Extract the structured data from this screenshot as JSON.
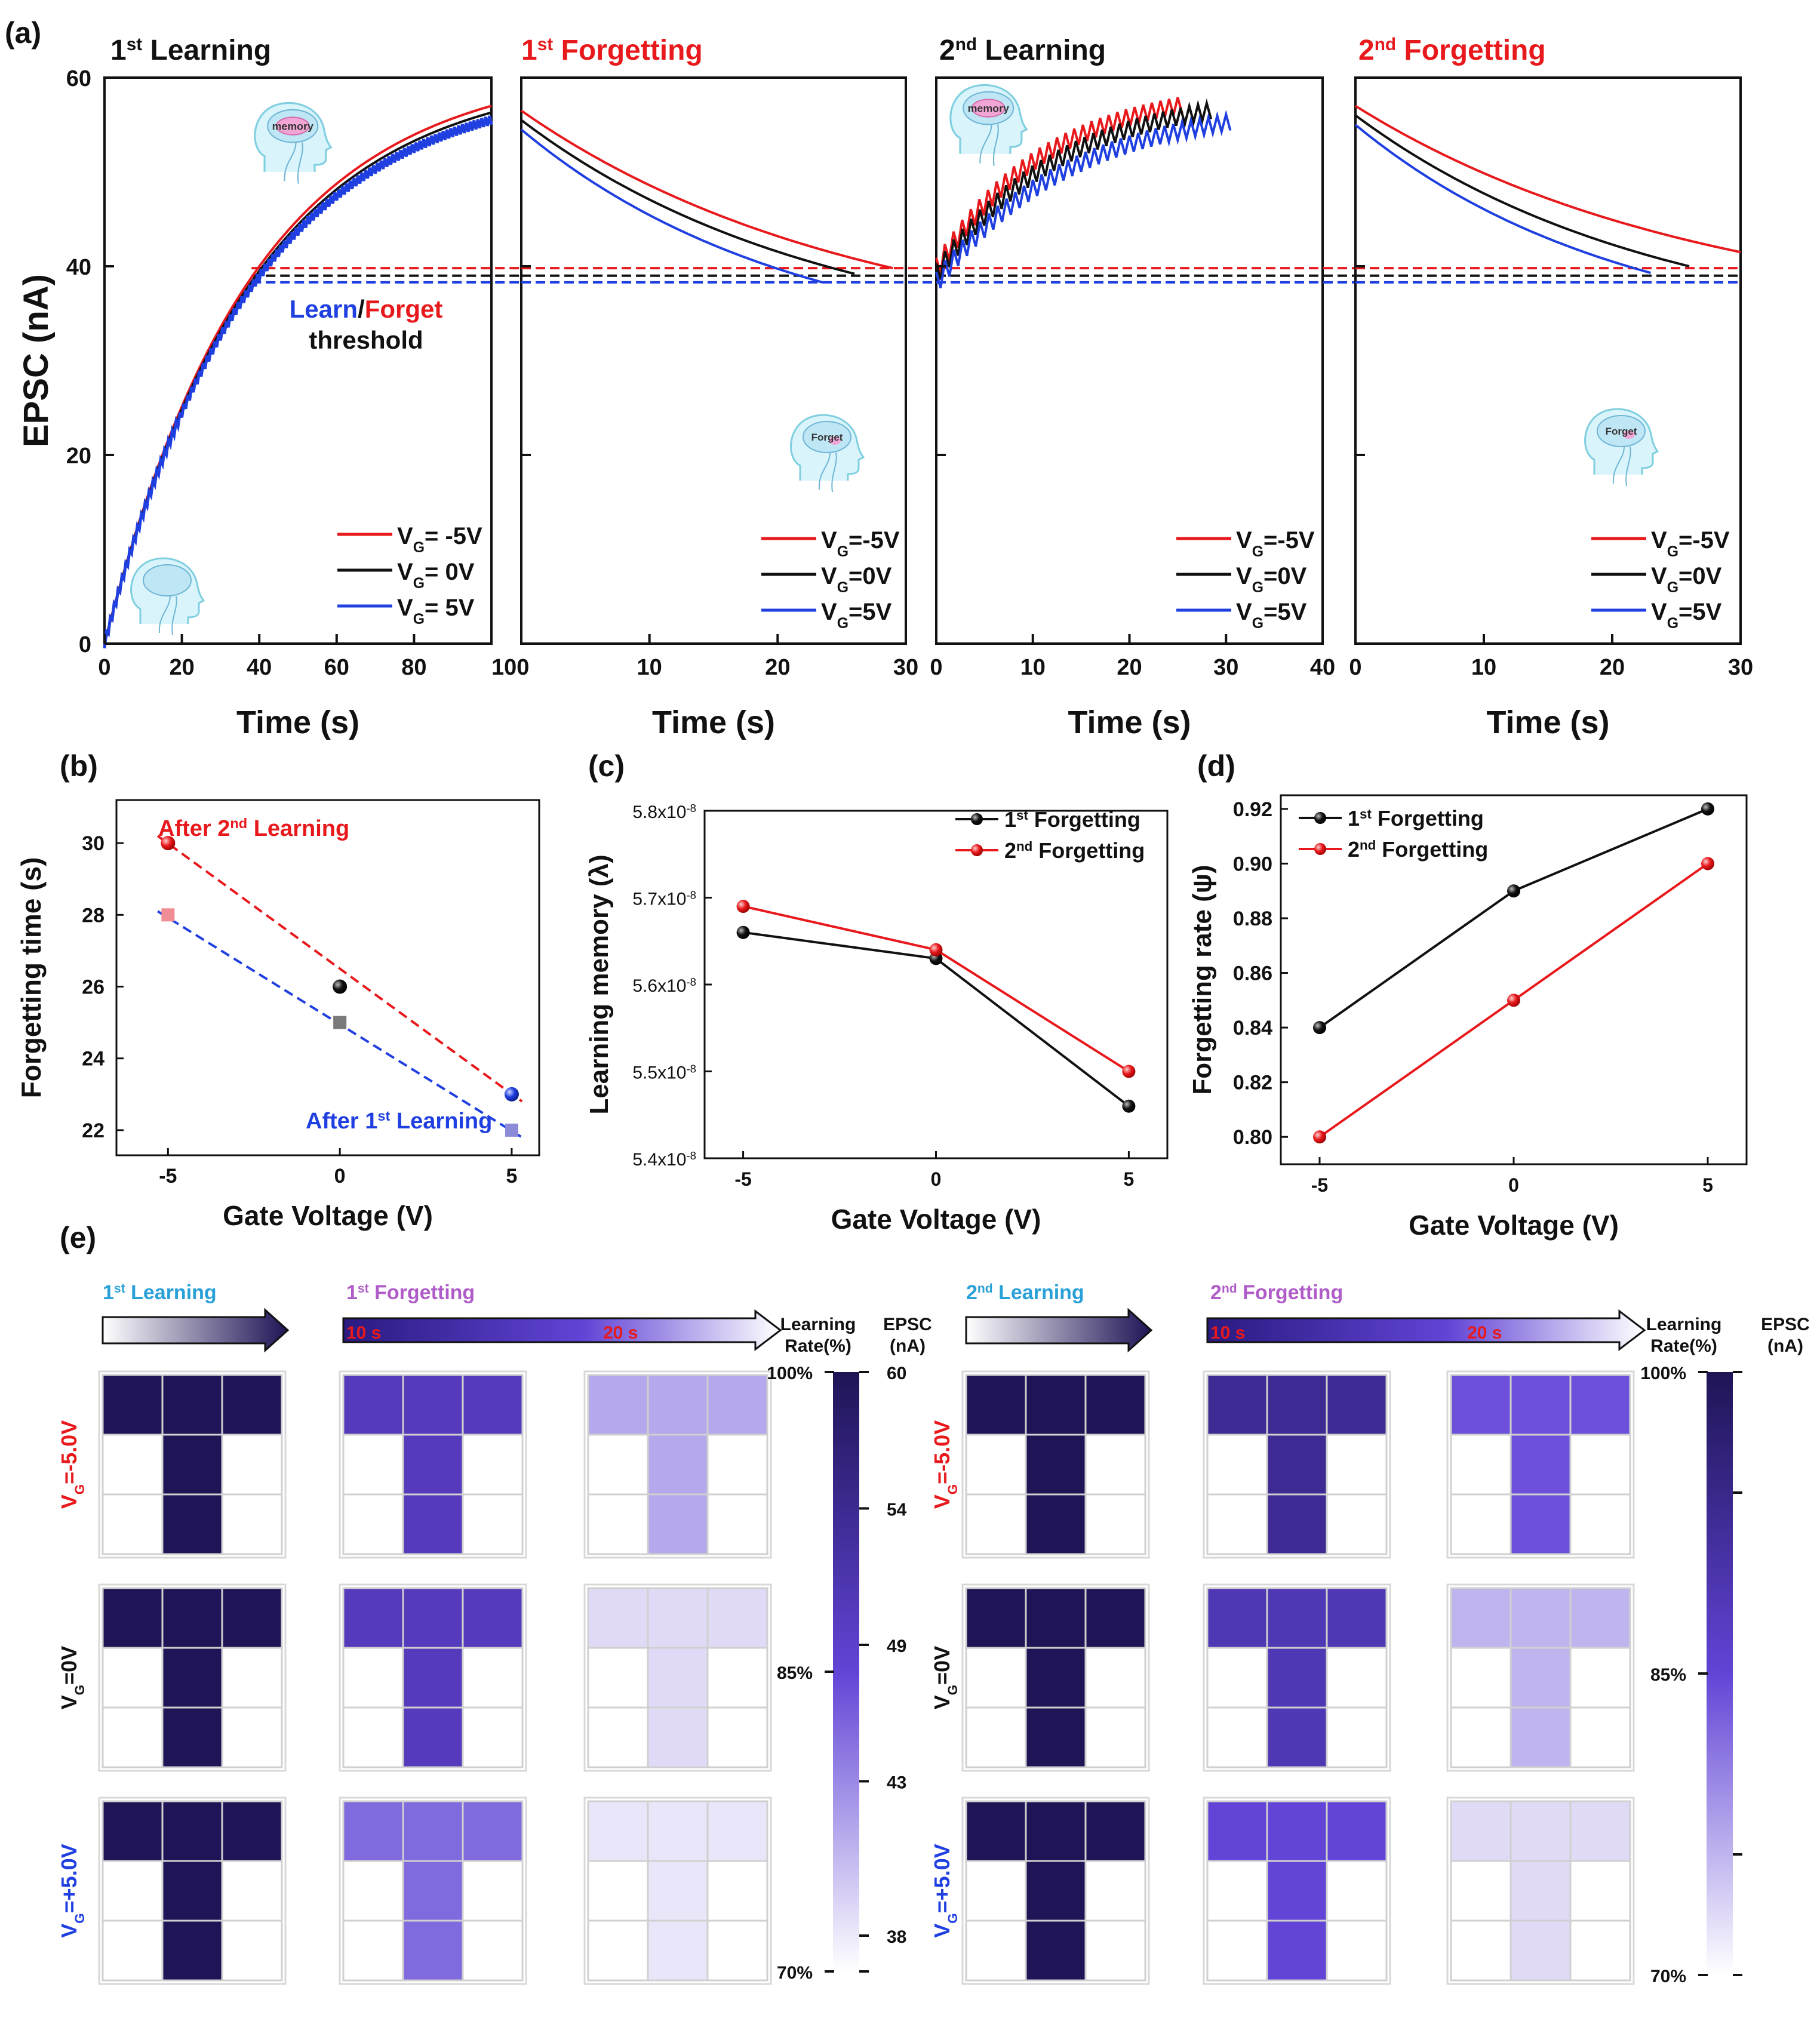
{
  "figure_labels": {
    "a": "(a)",
    "b": "(b)",
    "c": "(c)",
    "d": "(d)",
    "e": "(e)"
  },
  "colors": {
    "red": "#e8191c",
    "black": "#111111",
    "blue": "#1f3fe0",
    "pink": "#f08d95",
    "grey": "#7a7a7a",
    "navy": "#1f1456",
    "violet": "#6244d6"
  },
  "chart_data": [
    {
      "type": "line",
      "panel": "a1",
      "title_main": "1",
      "title_sup": "st",
      "title_rest": " Learning",
      "xlabel": "Time (s)",
      "ylabel": "EPSC (nA)",
      "xlim": [
        0,
        100
      ],
      "ylim": [
        0,
        60
      ],
      "xticks": [
        "0",
        "20",
        "40",
        "60",
        "80",
        "100"
      ],
      "yticks": [
        "0",
        "20",
        "40",
        "60"
      ],
      "threshold_label": {
        "learn": "Learn",
        "slash": "/",
        "forget": "Forget",
        "line2": "threshold"
      },
      "thresholds": [
        39.8,
        39.0,
        38.3
      ],
      "series": [
        {
          "name": "VG= -5V",
          "sub": "G",
          "pre": "V",
          "post": "= -5V",
          "color": "#e8191c",
          "type": "learn",
          "x0": 0,
          "x1": 100,
          "y0": 0,
          "y1": 57
        },
        {
          "name": "VG= 0V",
          "sub": "G",
          "pre": "V",
          "post": "= 0V",
          "color": "#111111",
          "type": "learn",
          "x0": 0,
          "x1": 100,
          "y0": 0,
          "y1": 56.3
        },
        {
          "name": "VG= 5V",
          "sub": "G",
          "pre": "V",
          "post": "= 5V",
          "color": "#1f3fe0",
          "type": "learn",
          "x0": 0,
          "x1": 100,
          "y0": 0,
          "y1": 55.5
        }
      ],
      "icon_labels": [
        "memory"
      ]
    },
    {
      "type": "line",
      "panel": "a2",
      "title_main": "1",
      "title_sup": "st",
      "title_rest": " Forgetting",
      "xlabel": "Time (s)",
      "xlim": [
        0,
        30
      ],
      "ylim": [
        0,
        60
      ],
      "xticks": [
        "10",
        "20",
        "30"
      ],
      "thresholds": [
        39.8,
        39.0,
        38.3
      ],
      "series": [
        {
          "name": "VG=-5V",
          "pre": "V",
          "sub": "G",
          "post": "=-5V",
          "color": "#e8191c",
          "type": "decay",
          "x0": 0,
          "x1": 29,
          "y0": 56.5,
          "y1": 39.8
        },
        {
          "name": "VG=0V",
          "pre": "V",
          "sub": "G",
          "post": "=0V",
          "color": "#111111",
          "type": "decay",
          "x0": 0,
          "x1": 26,
          "y0": 55.5,
          "y1": 39.2
        },
        {
          "name": "VG=5V",
          "pre": "V",
          "sub": "G",
          "post": "=5V",
          "color": "#1f3fe0",
          "type": "decay",
          "x0": 0,
          "x1": 23.5,
          "y0": 54.5,
          "y1": 38.3
        }
      ],
      "icon_labels": [
        "Forget"
      ]
    },
    {
      "type": "line",
      "panel": "a3",
      "title_main": "2",
      "title_sup": "nd",
      "title_rest": " Learning",
      "xlabel": "Time (s)",
      "xlim": [
        0,
        40
      ],
      "ylim": [
        0,
        60
      ],
      "xticks": [
        "0",
        "10",
        "20",
        "30",
        "40"
      ],
      "thresholds": [
        39.8,
        39.0,
        38.3
      ],
      "series": [
        {
          "name": "VG=-5V",
          "pre": "V",
          "sub": "G",
          "post": "=-5V",
          "color": "#e8191c",
          "type": "zigzag",
          "x0": 0,
          "x1": 25,
          "y0": 39.8,
          "y1": 56.8
        },
        {
          "name": "VG=0V",
          "pre": "V",
          "sub": "G",
          "post": "=0V",
          "color": "#111111",
          "type": "zigzag",
          "x0": 0,
          "x1": 28,
          "y0": 39.2,
          "y1": 56.2
        },
        {
          "name": "VG=5V",
          "pre": "V",
          "sub": "G",
          "post": "=5V",
          "color": "#1f3fe0",
          "type": "zigzag",
          "x0": 0,
          "x1": 30,
          "y0": 38.3,
          "y1": 55
        }
      ],
      "icon_labels": [
        "memory"
      ]
    },
    {
      "type": "line",
      "panel": "a4",
      "title_main": "2",
      "title_sup": "nd",
      "title_rest": " Forgetting",
      "xlabel": "Time (s)",
      "xlim": [
        0,
        30
      ],
      "ylim": [
        0,
        60
      ],
      "xticks": [
        "0",
        "10",
        "20",
        "30"
      ],
      "thresholds": [
        39.8,
        39.0,
        38.3
      ],
      "series": [
        {
          "name": "VG=-5V",
          "pre": "V",
          "sub": "G",
          "post": "=-5V",
          "color": "#e8191c",
          "type": "decay",
          "x0": 0,
          "x1": 30,
          "y0": 57,
          "y1": 41.5
        },
        {
          "name": "VG=0V",
          "pre": "V",
          "sub": "G",
          "post": "=0V",
          "color": "#111111",
          "type": "decay",
          "x0": 0,
          "x1": 26,
          "y0": 56,
          "y1": 40
        },
        {
          "name": "VG=5V",
          "pre": "V",
          "sub": "G",
          "post": "=5V",
          "color": "#1f3fe0",
          "type": "decay",
          "x0": 0,
          "x1": 23,
          "y0": 55,
          "y1": 39.3
        }
      ],
      "icon_labels": [
        "Forget"
      ]
    },
    {
      "type": "scatter",
      "panel": "b",
      "xlabel": "Gate Voltage (V)",
      "ylabel": "Forgetting time (s)",
      "xlim": [
        -6.5,
        5.8
      ],
      "ylim": [
        21.3,
        31.2
      ],
      "xticks": [
        -5,
        0,
        5
      ],
      "xtick_labels": [
        "-5",
        "0",
        "5"
      ],
      "yticks": [
        22,
        24,
        26,
        28,
        30
      ],
      "ytick_labels": [
        "22",
        "24",
        "26",
        "28",
        "30"
      ],
      "annotations": {
        "second": {
          "pre": "After 2",
          "sup": "nd",
          "post": " Learning"
        },
        "first": {
          "pre": "After 1",
          "sup": "st",
          "post": " Learning"
        }
      },
      "series": [
        {
          "name": "After 2nd Learning",
          "x": [
            -5,
            0,
            5
          ],
          "y": [
            30,
            26,
            23
          ],
          "colors": [
            "#e8191c",
            "#111111",
            "#1f3fe0"
          ],
          "marker": "circle",
          "fit": [
            -5.3,
            30.2,
            5.3,
            22.8
          ],
          "fit_color": "#e8191c"
        },
        {
          "name": "After 1st Learning",
          "x": [
            -5,
            0,
            5
          ],
          "y": [
            28,
            25,
            22
          ],
          "colors": [
            "#f08d95",
            "#7a7a7a",
            "#8b8bd8"
          ],
          "marker": "square",
          "fit": [
            -5.3,
            28.1,
            5.3,
            21.8
          ],
          "fit_color": "#1f3fe0"
        }
      ]
    },
    {
      "type": "line",
      "panel": "c",
      "xlabel": "Gate Voltage (V)",
      "ylabel": "Learning memory (λ)",
      "xlim": [
        -6,
        6
      ],
      "ylim": [
        5.4,
        5.8
      ],
      "xticks": [
        -5,
        0,
        5
      ],
      "xtick_labels": [
        "-5",
        "0",
        "5"
      ],
      "yticks": [
        5.4,
        5.5,
        5.6,
        5.7,
        5.8
      ],
      "ytick_labels": [
        "5.4x10",
        "5.5x10",
        "5.6x10",
        "5.7x10",
        "5.8x10"
      ],
      "ytick_exp": "-8",
      "series": [
        {
          "name": "1st Forgetting",
          "pre": "1",
          "sup": "st",
          "post": " Forgetting",
          "color": "#111111",
          "x": [
            -5,
            0,
            5
          ],
          "y": [
            5.66,
            5.63,
            5.46
          ]
        },
        {
          "name": "2nd Forgetting",
          "pre": "2",
          "sup": "nd",
          "post": " Forgetting",
          "color": "#e8191c",
          "x": [
            -5,
            0,
            5
          ],
          "y": [
            5.69,
            5.64,
            5.5
          ]
        }
      ]
    },
    {
      "type": "line",
      "panel": "d",
      "xlabel": "Gate Voltage (V)",
      "ylabel": "Forgetting rate (ψ)",
      "xlim": [
        -6,
        6
      ],
      "ylim": [
        0.79,
        0.925
      ],
      "xticks": [
        -5,
        0,
        5
      ],
      "xtick_labels": [
        "-5",
        "0",
        "5"
      ],
      "yticks": [
        0.8,
        0.82,
        0.84,
        0.86,
        0.88,
        0.9,
        0.92
      ],
      "ytick_labels": [
        "0.80",
        "0.82",
        "0.84",
        "0.86",
        "0.88",
        "0.90",
        "0.92"
      ],
      "series": [
        {
          "name": "1st Forgetting",
          "pre": "1",
          "sup": "st",
          "post": " Forgetting",
          "color": "#111111",
          "x": [
            -5,
            0,
            5
          ],
          "y": [
            0.84,
            0.89,
            0.92
          ]
        },
        {
          "name": "2nd Forgetting",
          "pre": "2",
          "sup": "nd",
          "post": " Forgetting",
          "color": "#e8191c",
          "x": [
            -5,
            0,
            5
          ],
          "y": [
            0.8,
            0.85,
            0.9
          ]
        }
      ]
    },
    {
      "type": "heatmap",
      "panel": "e",
      "row_labels": [
        {
          "pre": "V",
          "sub": "G",
          "post": "=-5.0V",
          "color": "#e8191c"
        },
        {
          "pre": "V",
          "sub": "G",
          "post": "=0V",
          "color": "#111111"
        },
        {
          "pre": "V",
          "sub": "G",
          "post": "=+5.0V",
          "color": "#1f3fe0"
        }
      ],
      "groups": [
        {
          "learning": {
            "pre": "1",
            "sup": "st",
            "post": " Learning"
          },
          "forgetting": {
            "pre": "1",
            "sup": "st",
            "post": " Forgetting"
          },
          "time_marks": [
            "10 s",
            "20 s"
          ],
          "grids_pct": [
            [
              100,
              88,
              77
            ],
            [
              100,
              88,
              73
            ],
            [
              100,
              82,
              72
            ]
          ]
        },
        {
          "learning": {
            "pre": "2",
            "sup": "nd",
            "post": " Learning"
          },
          "forgetting": {
            "pre": "2",
            "sup": "nd",
            "post": " Forgetting"
          },
          "time_marks": [
            "10 s",
            "20 s"
          ],
          "grids_pct": [
            [
              100,
              93,
              84
            ],
            [
              100,
              89,
              76
            ],
            [
              100,
              85,
              73
            ]
          ]
        }
      ],
      "colorbars": [
        {
          "title": "Learning",
          "title2": "Rate(%)",
          "epsc_title": "EPSC",
          "epsc_unit": "(nA)",
          "pct_labels": [
            "100%",
            "85%",
            "70%"
          ],
          "epsc_labels": [
            "60",
            "54",
            "49",
            "43",
            "38"
          ]
        },
        {
          "title": "Learning",
          "title2": "Rate(%)",
          "epsc_title": "EPSC",
          "epsc_unit": "(nA)",
          "pct_labels": [
            "100%",
            "85%",
            "70%"
          ],
          "epsc_labels": []
        }
      ],
      "value_range": [
        70,
        100
      ]
    }
  ]
}
